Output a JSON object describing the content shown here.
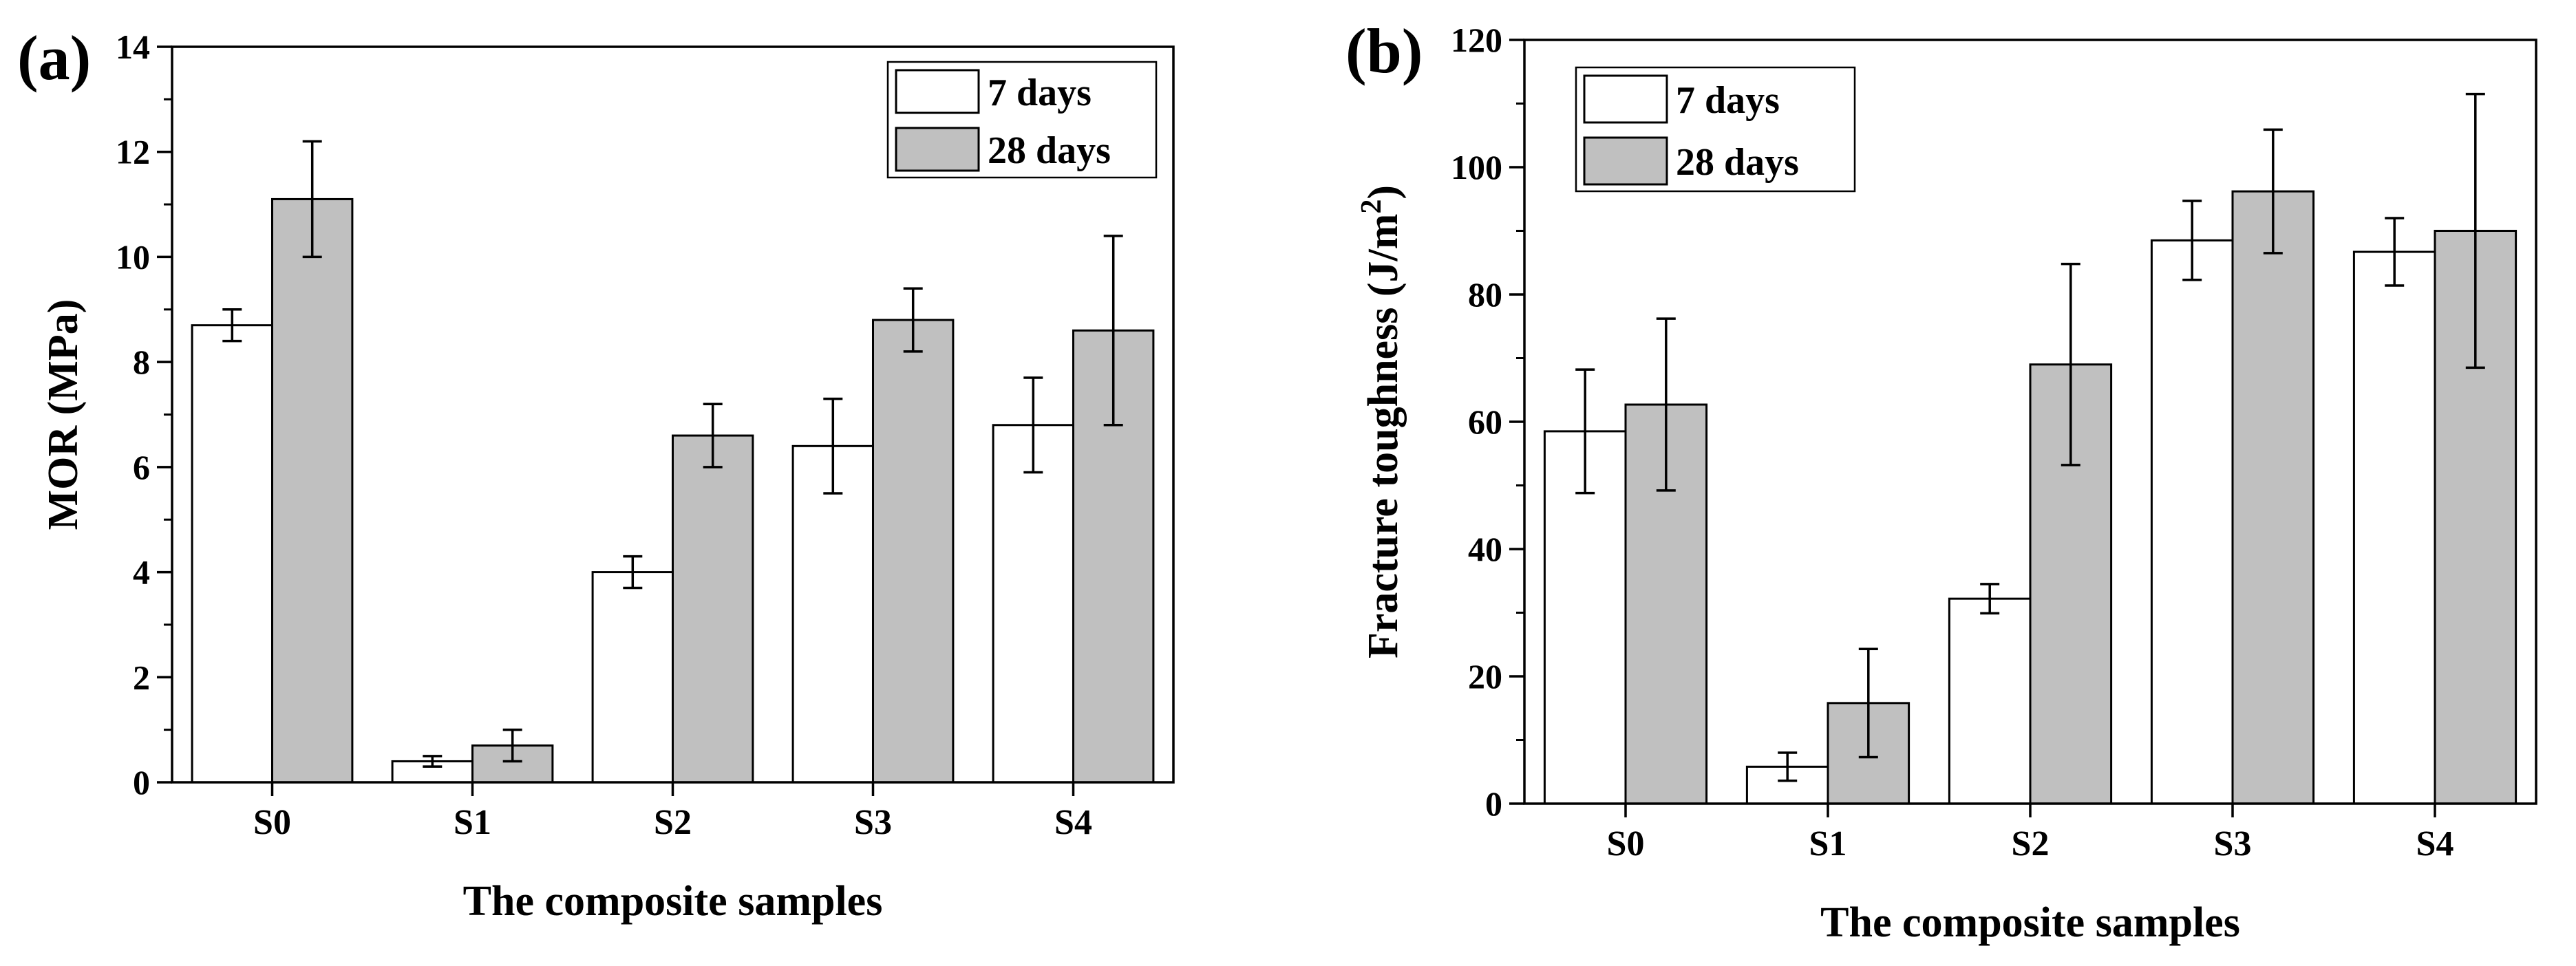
{
  "chart_data": [
    {
      "panel_label": "(a)",
      "type": "bar",
      "xlabel": "The composite samples",
      "ylabel": "MOR (MPa)",
      "ylabel_sup": "",
      "ylabel_tail": "",
      "categories": [
        "S0",
        "S1",
        "S2",
        "S3",
        "S4"
      ],
      "ylim": [
        0,
        14
      ],
      "yticks": [
        0,
        2,
        4,
        6,
        8,
        10,
        12,
        14
      ],
      "grid": false,
      "legend_position": "top-right",
      "series": [
        {
          "name": "7 days",
          "color": "#ffffff",
          "values": [
            8.7,
            0.4,
            4.0,
            6.4,
            6.8
          ],
          "errors": [
            0.3,
            0.1,
            0.3,
            0.9,
            0.9
          ]
        },
        {
          "name": "28 days",
          "color": "#c0c0c0",
          "values": [
            11.1,
            0.7,
            6.6,
            8.8,
            8.6
          ],
          "errors": [
            1.1,
            0.3,
            0.6,
            0.6,
            1.8
          ]
        }
      ]
    },
    {
      "panel_label": "(b)",
      "type": "bar",
      "xlabel": "The composite samples",
      "ylabel": "Fracture toughness (J/m",
      "ylabel_sup": "2",
      "ylabel_tail": ")",
      "categories": [
        "S0",
        "S1",
        "S2",
        "S3",
        "S4"
      ],
      "ylim": [
        0,
        120
      ],
      "yticks": [
        0,
        20,
        40,
        60,
        80,
        100,
        120
      ],
      "grid": false,
      "legend_position": "top-left",
      "series": [
        {
          "name": "7 days",
          "color": "#ffffff",
          "values": [
            58.5,
            5.8,
            32.2,
            88.5,
            86.7
          ],
          "errors": [
            9.7,
            2.2,
            2.3,
            6.2,
            5.3
          ]
        },
        {
          "name": "28 days",
          "color": "#c0c0c0",
          "values": [
            62.7,
            15.8,
            69.0,
            96.2,
            90.0
          ],
          "errors": [
            13.5,
            8.5,
            15.8,
            9.7,
            21.5
          ]
        }
      ]
    }
  ]
}
